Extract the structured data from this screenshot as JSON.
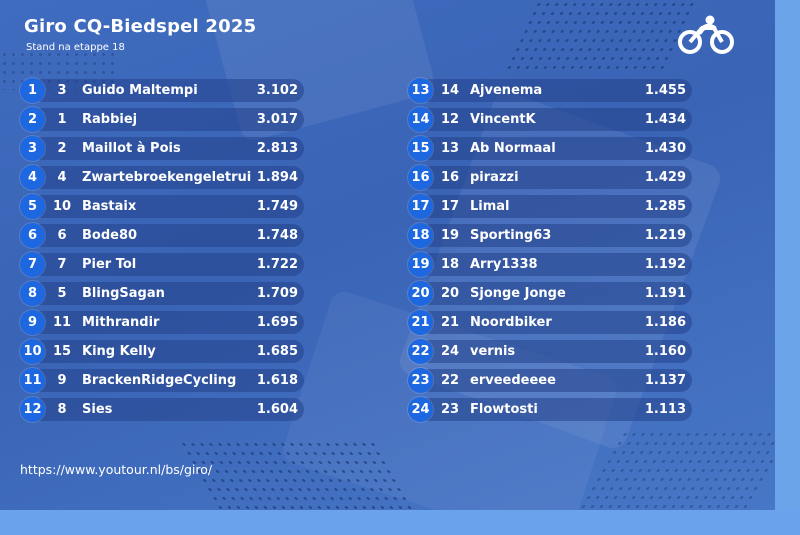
{
  "header": {
    "title": "Giro CQ-Biedspel 2025",
    "subtitle": "Stand na etappe 18",
    "logo_icon": "cyclist-logo-icon"
  },
  "colors": {
    "background": "#3f6cbf",
    "rank_badge": "#1d67e0",
    "row_pill": "#24428a",
    "text": "#ffffff"
  },
  "standings_left": [
    {
      "rank": "1",
      "previous": "3",
      "name": "Guido Maltempi",
      "score": "3.102"
    },
    {
      "rank": "2",
      "previous": "1",
      "name": "Rabbiej",
      "score": "3.017"
    },
    {
      "rank": "3",
      "previous": "2",
      "name": "Maillot à Pois",
      "score": "2.813"
    },
    {
      "rank": "4",
      "previous": "4",
      "name": "Zwartebroekengeletrui",
      "score": "1.894"
    },
    {
      "rank": "5",
      "previous": "10",
      "name": "Bastaix",
      "score": "1.749"
    },
    {
      "rank": "6",
      "previous": "6",
      "name": "Bode80",
      "score": "1.748"
    },
    {
      "rank": "7",
      "previous": "7",
      "name": "Pier Tol",
      "score": "1.722"
    },
    {
      "rank": "8",
      "previous": "5",
      "name": "BlingSagan",
      "score": "1.709"
    },
    {
      "rank": "9",
      "previous": "11",
      "name": "Mithrandir",
      "score": "1.695"
    },
    {
      "rank": "10",
      "previous": "15",
      "name": "King Kelly",
      "score": "1.685"
    },
    {
      "rank": "11",
      "previous": "9",
      "name": "BrackenRidgeCycling",
      "score": "1.618"
    },
    {
      "rank": "12",
      "previous": "8",
      "name": "Sies",
      "score": "1.604"
    }
  ],
  "standings_right": [
    {
      "rank": "13",
      "previous": "14",
      "name": "Ajvenema",
      "score": "1.455"
    },
    {
      "rank": "14",
      "previous": "12",
      "name": "VincentK",
      "score": "1.434"
    },
    {
      "rank": "15",
      "previous": "13",
      "name": "Ab Normaal",
      "score": "1.430"
    },
    {
      "rank": "16",
      "previous": "16",
      "name": "pirazzi",
      "score": "1.429"
    },
    {
      "rank": "17",
      "previous": "17",
      "name": "Limal",
      "score": "1.285"
    },
    {
      "rank": "18",
      "previous": "19",
      "name": "Sporting63",
      "score": "1.219"
    },
    {
      "rank": "19",
      "previous": "18",
      "name": "Arry1338",
      "score": "1.192"
    },
    {
      "rank": "20",
      "previous": "20",
      "name": "Sjonge Jonge",
      "score": "1.191"
    },
    {
      "rank": "21",
      "previous": "21",
      "name": "Noordbiker",
      "score": "1.186"
    },
    {
      "rank": "22",
      "previous": "24",
      "name": "vernis",
      "score": "1.160"
    },
    {
      "rank": "23",
      "previous": "22",
      "name": "erveedeeee",
      "score": "1.137"
    },
    {
      "rank": "24",
      "previous": "23",
      "name": "Flowtosti",
      "score": "1.113"
    }
  ],
  "footer": {
    "url": "https://www.youtour.nl/bs/giro/"
  }
}
